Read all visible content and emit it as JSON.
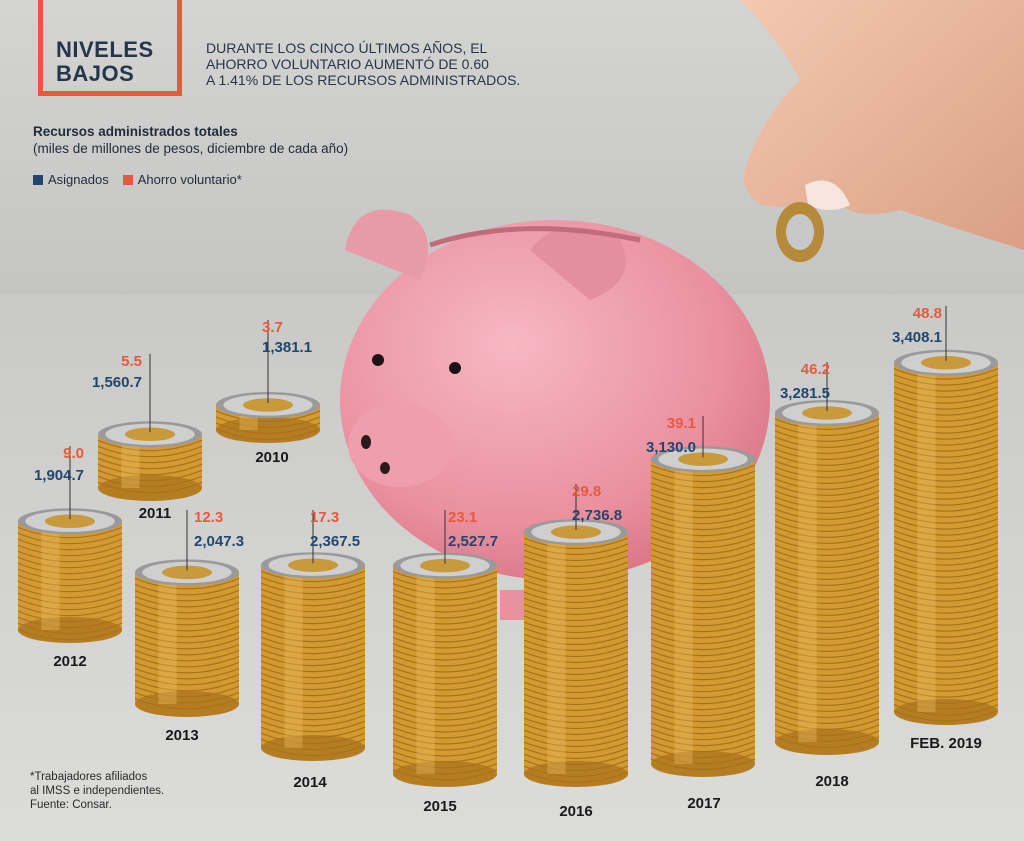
{
  "header": {
    "title_line1": "NIVELES",
    "title_line2": "BAJOS",
    "subtitle_line1": "DURANTE LOS CINCO ÚLTIMOS AÑOS, EL",
    "subtitle_line2": "AHORRO VOLUNTARIO AUMENTÓ DE 0.60",
    "subtitle_line3": "A 1.41% DE LOS RECURSOS ADMINISTRADOS."
  },
  "heading": "Recursos administrados totales",
  "subheading": "(miles de millones de pesos, diciembre de cada año)",
  "legend": {
    "asignados": "Asignados",
    "voluntario": "Ahorro voluntario*"
  },
  "colors": {
    "asignados": "#22466d",
    "voluntario": "#e8593c",
    "accent_frame": "#e8593c",
    "coin_gold": "#d9a23a",
    "piggy_pink": "#ee9aa8"
  },
  "notes": {
    "line1": "*Trabajadores afiliados",
    "line2": "al IMSS e independientes.",
    "line3": "Fuente: Consar."
  },
  "chart_data": {
    "type": "bar",
    "categories": [
      "2010",
      "2011",
      "2012",
      "2013",
      "2014",
      "2015",
      "2016",
      "2017",
      "2018",
      "FEB. 2019"
    ],
    "series": [
      {
        "name": "Asignados",
        "values": [
          1381.1,
          1560.7,
          1904.7,
          2047.3,
          2367.5,
          2527.7,
          2736.8,
          3130.0,
          3281.5,
          3408.1
        ]
      },
      {
        "name": "Ahorro voluntario*",
        "values": [
          3.7,
          5.5,
          9.0,
          12.3,
          17.3,
          23.1,
          29.8,
          39.1,
          46.2,
          48.8
        ]
      }
    ],
    "labels_asignados": [
      "1,381.1",
      "1,560.7",
      "1,904.7",
      "2,047.3",
      "2,367.5",
      "2,527.7",
      "2,736.8",
      "3,130.0",
      "3,281.5",
      "3,408.1"
    ],
    "labels_voluntario": [
      "3.7",
      "5.5",
      "9.0",
      "12.3",
      "17.3",
      "23.1",
      "29.8",
      "39.1",
      "46.2",
      "48.8"
    ],
    "title": "Recursos administrados totales",
    "ylabel": "miles de millones de pesos"
  }
}
